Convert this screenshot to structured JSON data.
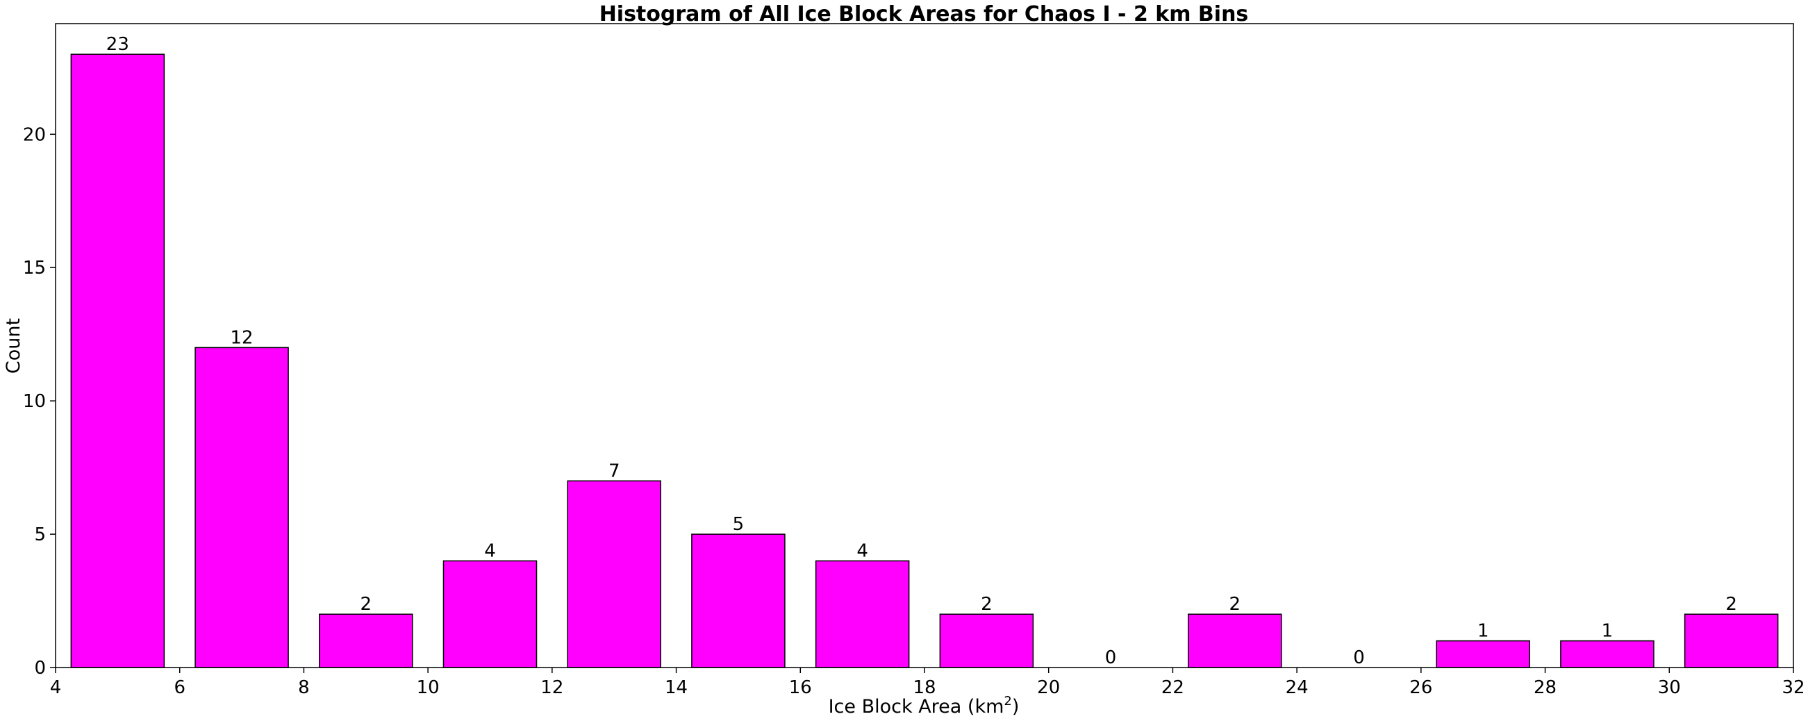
{
  "chart_data": {
    "type": "bar",
    "title": "Histogram of All Ice Block Areas for Chaos I - 2 km Bins",
    "xlabel": "Ice Block Area (km",
    "xlabel_sup": "2",
    "xlabel_suffix": ")",
    "ylabel": "Count",
    "bins": [
      [
        4,
        6
      ],
      [
        6,
        8
      ],
      [
        8,
        10
      ],
      [
        10,
        12
      ],
      [
        12,
        14
      ],
      [
        14,
        16
      ],
      [
        16,
        18
      ],
      [
        18,
        20
      ],
      [
        20,
        22
      ],
      [
        22,
        24
      ],
      [
        24,
        26
      ],
      [
        26,
        28
      ],
      [
        28,
        30
      ],
      [
        30,
        32
      ]
    ],
    "values": [
      23,
      12,
      2,
      4,
      7,
      5,
      4,
      2,
      0,
      2,
      0,
      1,
      1,
      2
    ],
    "xlim": [
      4,
      32
    ],
    "ylim": [
      0,
      24.15
    ],
    "xticks": [
      4,
      6,
      8,
      10,
      12,
      14,
      16,
      18,
      20,
      22,
      24,
      26,
      28,
      30,
      32
    ],
    "yticks": [
      0,
      5,
      10,
      15,
      20
    ],
    "bar_color": "#ff00ff",
    "bar_edge_color": "#000000",
    "grid": false,
    "legend": "none"
  }
}
